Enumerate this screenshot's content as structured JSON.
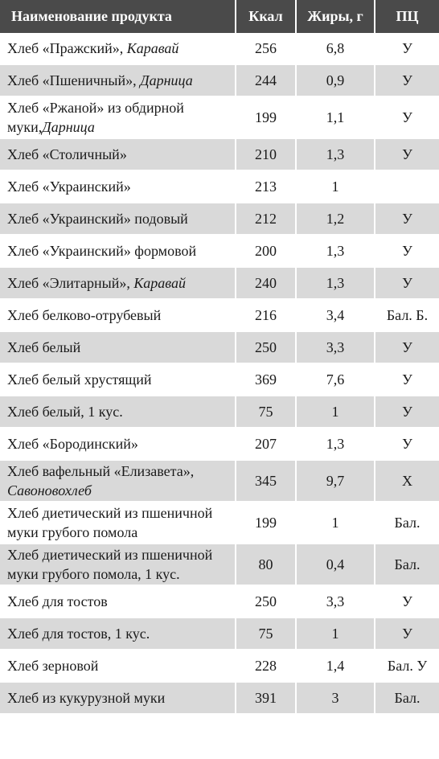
{
  "headers": {
    "name": "Наименование продукта",
    "kcal": "Ккал",
    "fat": "Жиры, г",
    "pc": "ПЦ"
  },
  "rows": [
    {
      "name": "Хлеб «Пражский», ",
      "brand": "Каравай",
      "kcal": "256",
      "fat": "6,8",
      "pc": "У"
    },
    {
      "name": "Хлеб «Пшеничный», ",
      "brand": "Дарница",
      "kcal": "244",
      "fat": "0,9",
      "pc": "У"
    },
    {
      "name": "Хлеб «Ржаной» из обдирной муки,",
      "brand": "Дарница",
      "kcal": "199",
      "fat": "1,1",
      "pc": "У"
    },
    {
      "name": "Хлеб «Столичный»",
      "brand": "",
      "kcal": "210",
      "fat": "1,3",
      "pc": "У"
    },
    {
      "name": "Хлеб «Украинский»",
      "brand": "",
      "kcal": "213",
      "fat": "1",
      "pc": ""
    },
    {
      "name": "Хлеб «Украинский» подовый",
      "brand": "",
      "kcal": "212",
      "fat": "1,2",
      "pc": "У"
    },
    {
      "name": "Хлеб «Украинский» формовой",
      "brand": "",
      "kcal": "200",
      "fat": "1,3",
      "pc": "У"
    },
    {
      "name": "Хлеб «Элитарный», ",
      "brand": "Каравай",
      "kcal": "240",
      "fat": "1,3",
      "pc": "У"
    },
    {
      "name": "Хлеб белково-отрубевый",
      "brand": "",
      "kcal": "216",
      "fat": "3,4",
      "pc": "Бал. Б."
    },
    {
      "name": "Хлеб белый",
      "brand": "",
      "kcal": "250",
      "fat": "3,3",
      "pc": "У"
    },
    {
      "name": "Хлеб белый хрустящий",
      "brand": "",
      "kcal": "369",
      "fat": "7,6",
      "pc": "У"
    },
    {
      "name": "Хлеб белый, 1 кус.",
      "brand": "",
      "kcal": "75",
      "fat": "1",
      "pc": "У"
    },
    {
      "name": "Хлеб «Бородинский»",
      "brand": "",
      "kcal": "207",
      "fat": "1,3",
      "pc": "У"
    },
    {
      "name": "Хлеб вафельный «Елизавета», ",
      "brand": "Савоновохлеб",
      "kcal": "345",
      "fat": "9,7",
      "pc": "Х"
    },
    {
      "name": "Хлеб диетический из пшеничной муки грубого помола",
      "brand": "",
      "kcal": "199",
      "fat": "1",
      "pc": "Бал."
    },
    {
      "name": "Хлеб диетический из пшеничной муки грубого помола, 1 кус.",
      "brand": "",
      "kcal": "80",
      "fat": "0,4",
      "pc": "Бал."
    },
    {
      "name": "Хлеб для тостов",
      "brand": "",
      "kcal": "250",
      "fat": "3,3",
      "pc": "У"
    },
    {
      "name": "Хлеб для тостов, 1 кус.",
      "brand": "",
      "kcal": "75",
      "fat": "1",
      "pc": "У"
    },
    {
      "name": "Хлеб зерновой",
      "brand": "",
      "kcal": "228",
      "fat": "1,4",
      "pc": "Бал. У"
    },
    {
      "name": "Хлеб из кукурузной муки",
      "brand": "",
      "kcal": "391",
      "fat": "3",
      "pc": "Бал."
    }
  ]
}
